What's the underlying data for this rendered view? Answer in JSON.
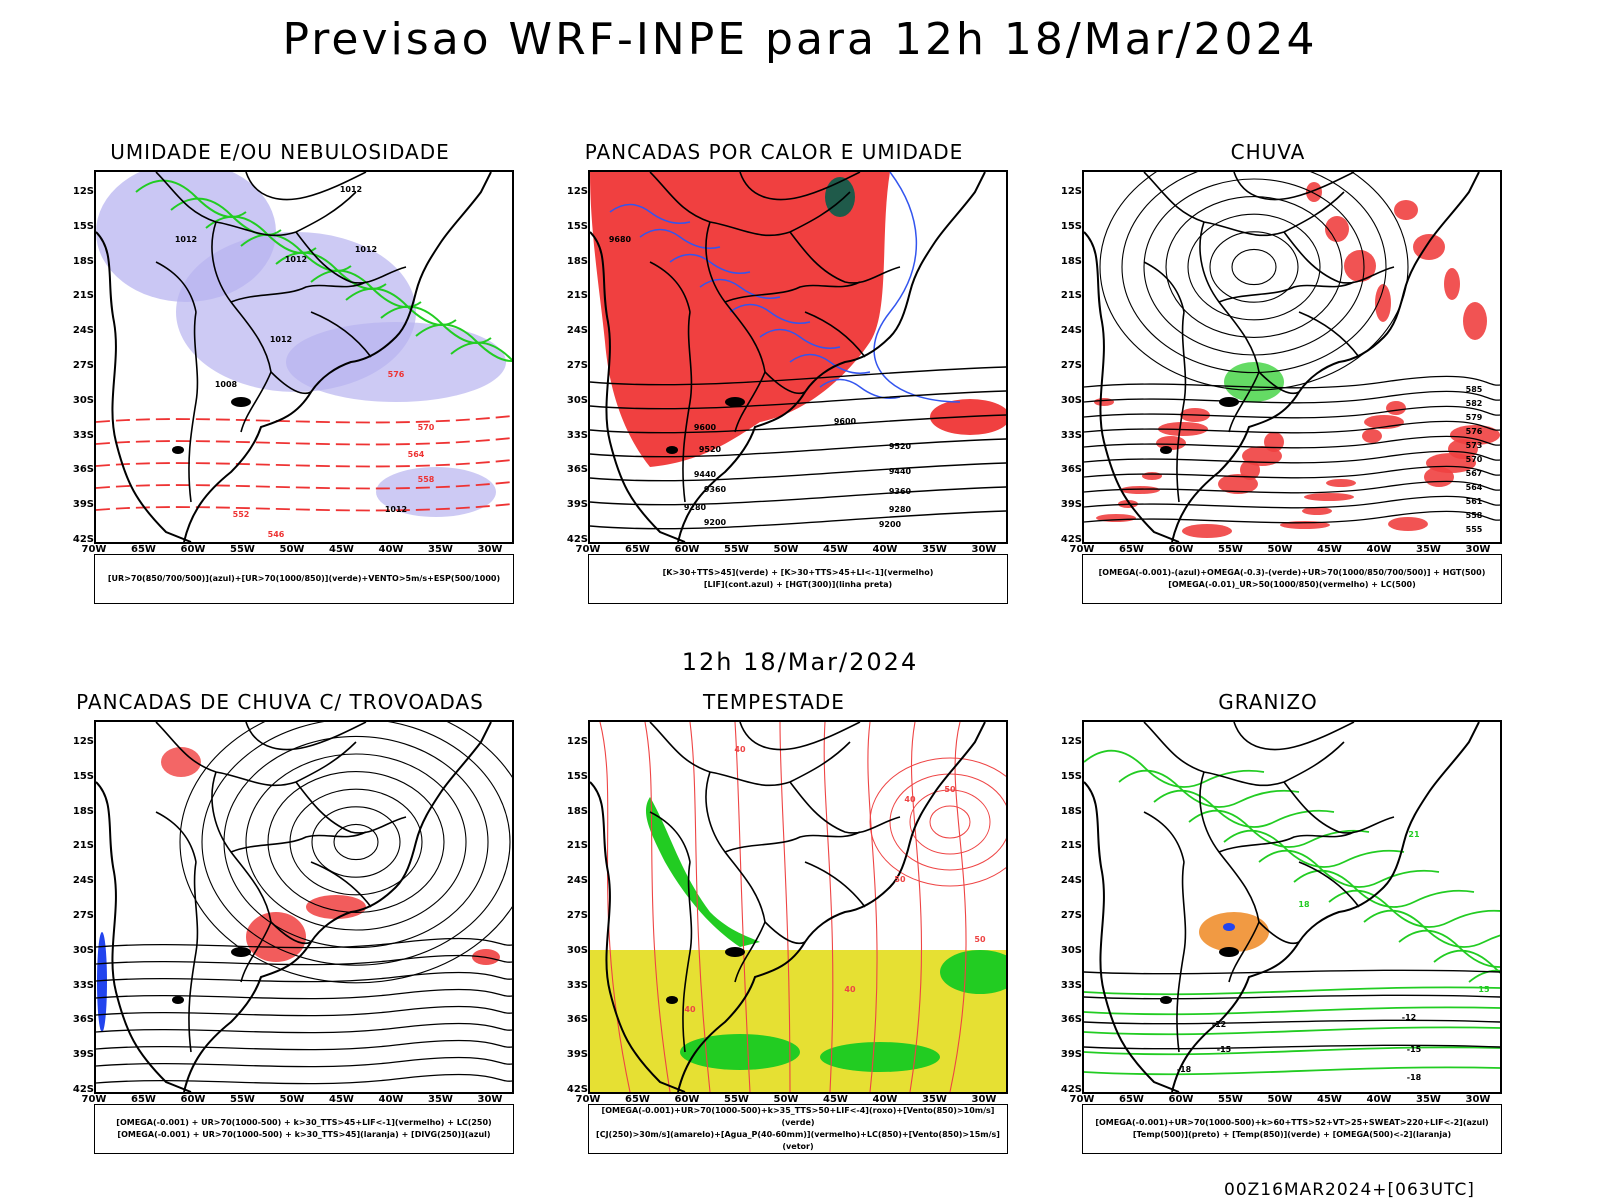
{
  "header": {
    "title": "Previsao WRF-INPE  para 12h 18/Mar/2024",
    "mid_title": "12h 18/Mar/2024",
    "footer_code": "00Z16MAR2024+[063UTC]"
  },
  "axes": {
    "lat_labels": [
      "12S",
      "15S",
      "18S",
      "21S",
      "24S",
      "27S",
      "30S",
      "33S",
      "36S",
      "39S",
      "42S"
    ],
    "lon_labels": [
      "70W",
      "65W",
      "60W",
      "55W",
      "50W",
      "45W",
      "40W",
      "35W",
      "30W"
    ]
  },
  "panels": [
    {
      "id": "umidade",
      "title": "UMIDADE E/OU NEBULOSIDADE",
      "legend": [
        "[UR>70(850/700/500)](azul)+[UR>70(1000/850)](verde)+VENTO>5m/s+ESP(500/1000)"
      ],
      "contour_labels": [
        "1012",
        "1012",
        "1012",
        "1012",
        "1008",
        "1012",
        "576",
        "570",
        "564",
        "558",
        "552",
        "546",
        "1012"
      ],
      "colors": {
        "fill": "#b8b4f0",
        "contour": "#22cc22",
        "dash": "#ee3333"
      }
    },
    {
      "id": "pancadas-calor",
      "title": "PANCADAS POR CALOR E UMIDADE",
      "legend": [
        "[K>30+TTS>45](verde) + [K>30+TTS>45+LI<-1](vermelho)",
        "[LIF](cont.azul) + [HGT(300)](linha preta)"
      ],
      "contour_labels": [
        "9680",
        "9600",
        "9520",
        "9440",
        "9360",
        "9280",
        "9200",
        "9600",
        "9520",
        "9440",
        "9360",
        "9280",
        "9200"
      ],
      "colors": {
        "fill": "#f04040",
        "contour": "#3355ee",
        "line": "#000000"
      }
    },
    {
      "id": "chuva",
      "title": "CHUVA",
      "legend": [
        "[OMEGA(-0.001)-(azul)+OMEGA(-0.3)-(verde)+UR>70(1000/850/700/500)] + HGT(500)",
        "[OMEGA(-0.01)_UR>50(1000/850)(vermelho) + LC(500)"
      ],
      "contour_labels": [
        "585",
        "582",
        "579",
        "576",
        "573",
        "570",
        "567",
        "564",
        "561",
        "558",
        "555"
      ],
      "colors": {
        "fill": "#f04040",
        "blue": "#2244ee",
        "green": "#22cc22"
      }
    },
    {
      "id": "pancadas-trovoadas",
      "title": "PANCADAS DE CHUVA C/ TROVOADAS",
      "legend": [
        "[OMEGA(-0.001) + UR>70(1000-500) + k>30_TTS>45+LIF<-1](vermelho) + LC(250)",
        "[OMEGA(-0.001) + UR>70(1000-500) + k>30_TTS>45](laranja) + [DIVG(250)](azul)"
      ],
      "contour_labels": [],
      "colors": {
        "fill": "#f04040",
        "blue": "#2244ee"
      }
    },
    {
      "id": "tempestade",
      "title": "TEMPESTADE",
      "legend": [
        "[OMEGA(-0.001)+UR>70(1000-500)+k>35_TTS>50+LIF<-4](roxo)+[Vento(850)>10m/s](verde)",
        "[CJ(250)>30m/s](amarelo)+[Agua_P(40-60mm)](vermelho)+LC(850)+[Vento(850)>15m/s](vetor)"
      ],
      "contour_labels": [
        "40",
        "50",
        "40",
        "50",
        "40",
        "40",
        "50"
      ],
      "colors": {
        "yellow": "#e6e033",
        "red": "#ee4444",
        "green": "#22cc22"
      }
    },
    {
      "id": "granizo",
      "title": "GRANIZO",
      "legend": [
        "[OMEGA(-0.001)+UR>70(1000-500)+k>60+TTS>52+VT>25+SWEAT>220+LIF<-2](azul)",
        "[Temp(500)](preto) + [Temp(850)](verde) + [OMEGA(500)<-2](laranja)"
      ],
      "contour_labels": [
        "-12",
        "-15",
        "-18",
        "-12",
        "-15",
        "-18",
        "21",
        "18",
        "15"
      ],
      "colors": {
        "green": "#22cc22",
        "orange": "#ee8822",
        "blue": "#2244ee"
      }
    }
  ]
}
